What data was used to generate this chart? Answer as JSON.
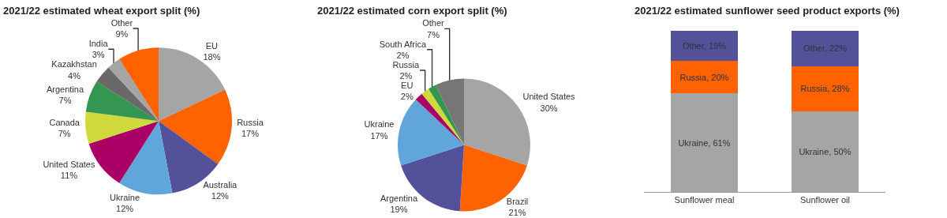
{
  "chart_data": [
    {
      "type": "pie",
      "title": "2021/22 estimated wheat export split (%)",
      "categories": [
        "EU",
        "Russia",
        "Australia",
        "Ukraine",
        "United States",
        "Canada",
        "Argentina",
        "Kazakhstan",
        "India",
        "Other"
      ],
      "values": [
        18,
        17,
        12,
        12,
        11,
        7,
        7,
        4,
        3,
        9
      ],
      "value_labels": [
        "18%",
        "17%",
        "12%",
        "12%",
        "11%",
        "7%",
        "7%",
        "4%",
        "3%",
        "9%"
      ],
      "colors": [
        "#a5a5a5",
        "#ff6200",
        "#525199",
        "#60a6da",
        "#aa0066",
        "#d0d93c",
        "#349651",
        "#696969",
        "#a5a5a5",
        "#ff6200"
      ]
    },
    {
      "type": "pie",
      "title": "2021/22 estimated corn export split (%)",
      "categories": [
        "United States",
        "Brazil",
        "Argentina",
        "Ukraine",
        "EU",
        "Russia",
        "South Africa",
        "Other"
      ],
      "values": [
        30,
        21,
        19,
        17,
        2,
        2,
        2,
        7
      ],
      "value_labels": [
        "30%",
        "21%",
        "19%",
        "17%",
        "2%",
        "2%",
        "2%",
        "7%"
      ],
      "colors": [
        "#a5a5a5",
        "#ff6200",
        "#525199",
        "#60a6da",
        "#aa0066",
        "#d0d93c",
        "#349651",
        "#767676"
      ]
    },
    {
      "type": "bar",
      "title": "2021/22 estimated sunflower seed product exports (%)",
      "categories": [
        "Sunflower meal",
        "Sunflower oil"
      ],
      "stacked": true,
      "ylim": [
        0,
        100
      ],
      "tick_labels": "x",
      "series": [
        {
          "color": "#a5a5a5",
          "values": [
            61,
            50
          ],
          "value_labels": [
            "Ukraine, 61%",
            "Ukraine, 50%"
          ]
        },
        {
          "color": "#ff6200",
          "values": [
            20,
            28
          ],
          "value_labels": [
            "Russia, 20%",
            "Russia, 28%"
          ]
        },
        {
          "color": "#525199",
          "values": [
            19,
            22
          ],
          "value_labels": [
            "Other, 19%",
            "Other, 22%"
          ]
        }
      ]
    }
  ]
}
